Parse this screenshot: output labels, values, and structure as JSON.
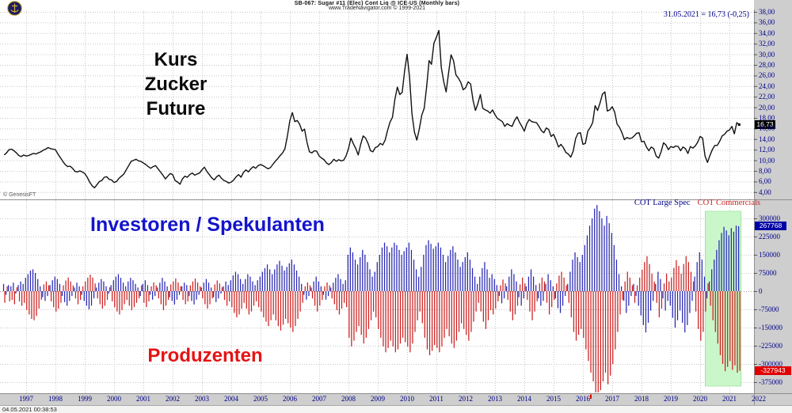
{
  "header": {
    "title": "SB-067:  Sugar #11 (Elec) Cont Liq @ ICE-US  (Monthly bars)",
    "subtitle": "www.TradeNavigator.com © 1999-2021"
  },
  "watermark": "© GenesisFT",
  "timestamp": "04.05.2021 00:38:53",
  "price_annotation": "31.05.2021 = 16,73 (-0,25)",
  "labels": {
    "price_lines": [
      "Kurs",
      "Zucker",
      "Future"
    ],
    "investors": "Investoren / Spekulanten",
    "producers": "Produzenten"
  },
  "legend": {
    "large_spec": "COT Large Spec",
    "commercials": "COT Commercials"
  },
  "badges": {
    "price": "16,73",
    "spec": "267768",
    "comm": "-327943"
  },
  "colors": {
    "spec_blue": "#2828b4",
    "comm_red": "#cc2020",
    "navy": "#00008b",
    "highlight_green": "#c9f7c9",
    "highlight_border": "#90d890",
    "grid": "#c6c6c6",
    "price_line": "#111111",
    "marker_red": "#e00000"
  },
  "price_axis": {
    "ticks": [
      "38,00",
      "36,00",
      "34,00",
      "32,00",
      "30,00",
      "28,00",
      "26,00",
      "24,00",
      "22,00",
      "20,00",
      "18,00",
      "16,00",
      "14,00",
      "12,00",
      "10,00",
      "8,00",
      "6,00",
      "4,00"
    ],
    "max": 38,
    "min": 4,
    "step": 2
  },
  "cot_axis": {
    "ticks": [
      "300000",
      "225000",
      "150000",
      "75000",
      "0",
      "-75000",
      "-150000",
      "-225000",
      "-300000",
      "-375000"
    ],
    "max": 300000,
    "min": -375000,
    "step": 75000
  },
  "x_axis": {
    "years": [
      1997,
      1998,
      1999,
      2000,
      2001,
      2002,
      2003,
      2004,
      2005,
      2006,
      2007,
      2008,
      2009,
      2010,
      2011,
      2012,
      2013,
      2014,
      2015,
      2016,
      2017,
      2018,
      2019,
      2020,
      2021,
      2022
    ],
    "marker_year": 2016.27
  },
  "chart_data": [
    {
      "type": "line",
      "name": "sugar-price-monthly",
      "title": "Kurs Zucker Future",
      "x_start": 1996.25,
      "x_step_months": 1,
      "ylim": [
        4,
        38
      ],
      "last_close": 16.73,
      "values": [
        11.0,
        11.4,
        12.0,
        12.1,
        11.8,
        11.4,
        10.9,
        10.7,
        11.0,
        10.8,
        10.9,
        11.1,
        11.3,
        11.2,
        11.4,
        11.6,
        11.9,
        12.1,
        12.4,
        12.2,
        12.1,
        12.0,
        11.2,
        10.5,
        9.8,
        9.2,
        8.8,
        8.9,
        8.5,
        7.9,
        7.8,
        8.0,
        7.8,
        7.5,
        6.8,
        5.9,
        5.2,
        4.8,
        5.4,
        6.0,
        6.2,
        6.8,
        6.9,
        6.4,
        6.3,
        5.8,
        6.0,
        6.6,
        7.0,
        7.4,
        8.2,
        9.0,
        9.8,
        10.0,
        10.2,
        9.9,
        9.8,
        9.5,
        9.2,
        8.8,
        8.5,
        8.8,
        9.0,
        8.4,
        7.8,
        7.2,
        6.5,
        7.0,
        7.5,
        7.3,
        6.2,
        5.9,
        5.5,
        6.5,
        7.0,
        6.8,
        7.3,
        7.6,
        7.2,
        7.4,
        7.6,
        8.2,
        8.7,
        7.9,
        7.3,
        6.7,
        6.3,
        6.9,
        7.2,
        6.6,
        6.2,
        6.0,
        5.7,
        5.9,
        6.3,
        6.9,
        7.3,
        6.8,
        7.7,
        8.2,
        7.8,
        8.4,
        8.8,
        8.5,
        9.0,
        9.2,
        9.0,
        8.7,
        8.4,
        8.6,
        9.2,
        9.8,
        10.3,
        10.9,
        11.4,
        12.2,
        14.6,
        17.5,
        19.0,
        17.3,
        17.5,
        16.8,
        15.5,
        15.9,
        13.4,
        11.6,
        11.4,
        11.8,
        11.7,
        10.8,
        10.4,
        10.1,
        9.5,
        9.2,
        9.6,
        10.2,
        9.8,
        10.1,
        9.9,
        10.0,
        10.8,
        12.2,
        14.2,
        13.1,
        12.2,
        11.0,
        13.0,
        14.6,
        14.2,
        13.2,
        11.8,
        11.6,
        12.4,
        12.6,
        13.2,
        12.9,
        13.8,
        15.6,
        17.2,
        18.1,
        21.5,
        23.8,
        22.4,
        22.8,
        26.9,
        30.0,
        25.7,
        18.7,
        15.3,
        13.8,
        15.9,
        18.5,
        19.8,
        23.9,
        28.8,
        28.1,
        32.1,
        33.2,
        34.5,
        27.5,
        24.8,
        22.9,
        26.5,
        29.9,
        28.8,
        26.1,
        25.5,
        24.7,
        23.3,
        23.7,
        24.8,
        24.4,
        21.3,
        19.4,
        20.7,
        22.4,
        19.8,
        19.5,
        19.3,
        18.9,
        19.5,
        18.6,
        17.9,
        17.6,
        17.3,
        16.4,
        16.9,
        16.6,
        16.4,
        17.5,
        18.2,
        17.2,
        16.4,
        15.5,
        16.9,
        17.7,
        17.3,
        17.2,
        17.1,
        16.4,
        15.6,
        15.2,
        16.1,
        15.8,
        14.5,
        14.9,
        13.8,
        12.5,
        13.0,
        12.4,
        11.5,
        11.2,
        10.6,
        11.7,
        14.1,
        15.1,
        15.2,
        13.0,
        13.2,
        15.5,
        16.2,
        17.1,
        20.3,
        19.4,
        20.8,
        22.5,
        22.9,
        19.3,
        19.5,
        20.1,
        19.1,
        16.8,
        16.2,
        15.2,
        13.9,
        14.3,
        14.1,
        14.2,
        14.6,
        15.1,
        15.2,
        13.5,
        13.6,
        12.5,
        11.8,
        12.5,
        12.2,
        10.8,
        10.4,
        11.6,
        13.3,
        12.9,
        12.0,
        12.6,
        12.4,
        12.7,
        12.6,
        11.8,
        12.5,
        12.2,
        11.3,
        12.6,
        12.3,
        12.7,
        13.4,
        14.5,
        14.2,
        10.8,
        9.6,
        10.9,
        12.0,
        12.8,
        12.8,
        13.6,
        14.6,
        14.9,
        15.5,
        15.7,
        16.4,
        15.0,
        17.1,
        16.73
      ]
    },
    {
      "type": "bar",
      "name": "cot-net-positions",
      "x_start": 1996.25,
      "x_step_months": 1,
      "unit": "contracts (thousands)",
      "ylim": [
        -375,
        300
      ],
      "highlight": {
        "x_from": 2020.17,
        "x_to": 2021.4
      },
      "last_values": {
        "large_spec": 267768,
        "commercials": -327943
      },
      "series": [
        {
          "name": "COT Large Spec",
          "values": [
            30,
            -15,
            25,
            20,
            35,
            -10,
            25,
            40,
            30,
            55,
            70,
            85,
            90,
            75,
            50,
            20,
            -25,
            -40,
            -20,
            25,
            45,
            60,
            50,
            30,
            -20,
            -45,
            -60,
            -40,
            -20,
            15,
            35,
            20,
            -15,
            -40,
            -60,
            -75,
            -60,
            -30,
            15,
            35,
            50,
            40,
            20,
            -10,
            25,
            45,
            60,
            70,
            55,
            35,
            20,
            40,
            55,
            45,
            30,
            15,
            -20,
            30,
            45,
            25,
            -15,
            -35,
            -20,
            15,
            35,
            55,
            40,
            20,
            -25,
            -40,
            -55,
            -35,
            -15,
            20,
            35,
            25,
            -20,
            -40,
            -55,
            -35,
            -15,
            15,
            35,
            50,
            35,
            15,
            -25,
            -45,
            -30,
            -10,
            20,
            40,
            25,
            45,
            65,
            80,
            70,
            50,
            30,
            50,
            70,
            60,
            40,
            25,
            45,
            60,
            80,
            95,
            110,
            90,
            70,
            90,
            110,
            125,
            105,
            85,
            100,
            115,
            130,
            110,
            85,
            60,
            30,
            -15,
            -35,
            -20,
            15,
            40,
            60,
            40,
            20,
            -15,
            -35,
            -20,
            15,
            35,
            55,
            70,
            50,
            30,
            45,
            150,
            180,
            160,
            130,
            110,
            140,
            170,
            150,
            120,
            90,
            60,
            80,
            120,
            150,
            180,
            200,
            185,
            160,
            180,
            200,
            190,
            170,
            150,
            165,
            180,
            200,
            170,
            130,
            90,
            60,
            100,
            150,
            190,
            210,
            195,
            175,
            185,
            200,
            180,
            150,
            120,
            145,
            170,
            185,
            160,
            130,
            100,
            120,
            140,
            160,
            130,
            95,
            60,
            30,
            60,
            95,
            120,
            90,
            55,
            70,
            50,
            25,
            -20,
            -50,
            -30,
            20,
            60,
            90,
            70,
            40,
            -25,
            -60,
            -30,
            20,
            60,
            90,
            60,
            25,
            -30,
            -60,
            -40,
            30,
            70,
            45,
            20,
            -30,
            -70,
            -90,
            -60,
            -20,
            30,
            80,
            130,
            160,
            140,
            120,
            150,
            190,
            230,
            270,
            300,
            340,
            355,
            330,
            300,
            270,
            310,
            280,
            240,
            190,
            130,
            70,
            20,
            -40,
            -90,
            -60,
            -20,
            30,
            -20,
            -60,
            -100,
            -140,
            -170,
            -130,
            -80,
            -40,
            30,
            80,
            50,
            -30,
            -80,
            -40,
            -60,
            -110,
            -150,
            -120,
            -80,
            -130,
            -170,
            -140,
            -90,
            -40,
            60,
            120,
            160,
            130,
            60,
            -30,
            40,
            90,
            130,
            170,
            210,
            240,
            265,
            250,
            230,
            260,
            245,
            270,
            267.8
          ]
        },
        {
          "name": "COT Commercials",
          "values": [
            -48,
            20,
            -42,
            -36,
            -54,
            16,
            -42,
            -60,
            -48,
            -78,
            -96,
            -114,
            -120,
            -102,
            -72,
            -36,
            28,
            40,
            24,
            -42,
            -66,
            -84,
            -72,
            -48,
            24,
            44,
            56,
            40,
            24,
            -30,
            -54,
            -36,
            20,
            40,
            56,
            68,
            56,
            32,
            -30,
            -54,
            -72,
            -60,
            -36,
            16,
            -42,
            -66,
            -84,
            -96,
            -78,
            -54,
            -36,
            -60,
            -78,
            -66,
            -48,
            -30,
            24,
            -48,
            -66,
            -42,
            20,
            36,
            24,
            -30,
            -54,
            -78,
            -60,
            -36,
            28,
            40,
            52,
            36,
            20,
            -36,
            -54,
            -42,
            24,
            40,
            52,
            36,
            20,
            -30,
            -54,
            -72,
            -54,
            -30,
            28,
            44,
            32,
            16,
            -36,
            -60,
            -42,
            -66,
            -90,
            -108,
            -96,
            -72,
            -48,
            -72,
            -96,
            -84,
            -60,
            -42,
            -66,
            -84,
            -108,
            -126,
            -144,
            -120,
            -96,
            -120,
            -144,
            -162,
            -138,
            -114,
            -132,
            -150,
            -168,
            -144,
            -114,
            -84,
            -48,
            20,
            36,
            24,
            -30,
            -60,
            -84,
            -60,
            -36,
            20,
            36,
            24,
            -30,
            -54,
            -78,
            -96,
            -72,
            -48,
            -66,
            -192,
            -228,
            -204,
            -168,
            -144,
            -180,
            -216,
            -192,
            -156,
            -120,
            -84,
            -108,
            -156,
            -192,
            -228,
            -252,
            -234,
            -204,
            -228,
            -252,
            -240,
            -216,
            -192,
            -210,
            -228,
            -252,
            -216,
            -168,
            -120,
            -84,
            -132,
            -192,
            -240,
            -264,
            -246,
            -222,
            -234,
            -252,
            -228,
            -192,
            -156,
            -186,
            -216,
            -234,
            -204,
            -168,
            -132,
            -156,
            -180,
            -204,
            -168,
            -126,
            -84,
            -48,
            -84,
            -126,
            -156,
            -120,
            -78,
            -96,
            -72,
            -42,
            24,
            48,
            32,
            -36,
            -84,
            -120,
            -96,
            -60,
            28,
            56,
            32,
            -36,
            -84,
            -120,
            -84,
            -42,
            32,
            56,
            40,
            -48,
            -96,
            -66,
            -36,
            32,
            64,
            80,
            56,
            24,
            -48,
            -108,
            -168,
            -204,
            -180,
            -156,
            -192,
            -240,
            -288,
            -336,
            -372,
            -420,
            -438,
            -408,
            -372,
            -336,
            -384,
            -348,
            -300,
            -240,
            -168,
            -96,
            -36,
            40,
            80,
            56,
            24,
            -48,
            24,
            56,
            88,
            120,
            144,
            112,
            72,
            40,
            -48,
            -108,
            -72,
            32,
            72,
            40,
            56,
            96,
            128,
            104,
            72,
            112,
            144,
            120,
            80,
            40,
            -84,
            -156,
            -204,
            -168,
            -84,
            32,
            -60,
            -120,
            -168,
            -216,
            -264,
            -300,
            -330,
            -312,
            -288,
            -324,
            -306,
            -336,
            -327.9
          ]
        }
      ]
    }
  ]
}
